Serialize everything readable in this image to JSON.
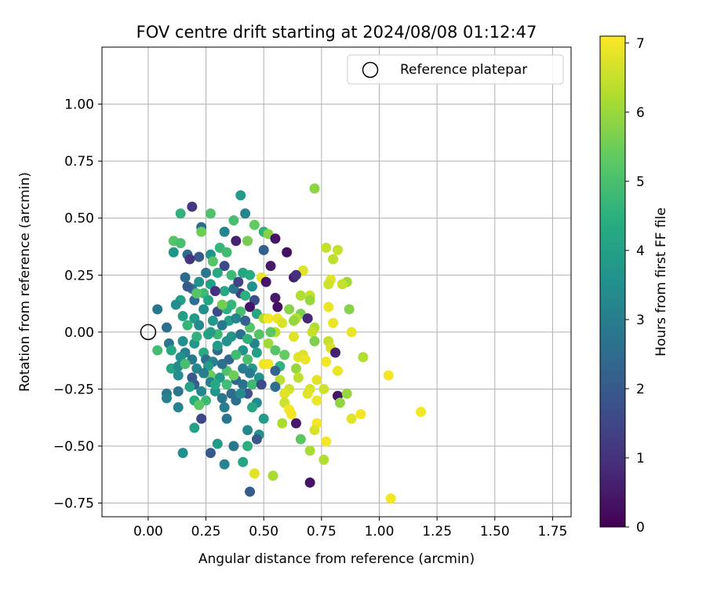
{
  "chart_data": {
    "type": "scatter",
    "title": "FOV centre drift starting at 2024/08/08 01:12:47",
    "xlabel": "Angular distance from reference (arcmin)",
    "ylabel": "Rotation from reference (arcmin)",
    "xlim": [
      -0.2,
      1.83
    ],
    "ylim": [
      -0.81,
      1.25
    ],
    "xticks": [
      0.0,
      0.25,
      0.5,
      0.75,
      1.0,
      1.25,
      1.5,
      1.75
    ],
    "xtick_labels": [
      "0.00",
      "0.25",
      "0.50",
      "0.75",
      "1.00",
      "1.25",
      "1.50",
      "1.75"
    ],
    "yticks": [
      -0.75,
      -0.5,
      -0.25,
      0.0,
      0.25,
      0.5,
      0.75,
      1.0
    ],
    "ytick_labels": [
      "−0.75",
      "−0.50",
      "−0.25",
      "0.00",
      "0.25",
      "0.50",
      "0.75",
      "1.00"
    ],
    "grid": true,
    "legend": {
      "placement": "top-right",
      "entries": [
        "Reference platepar"
      ]
    },
    "colorbar": {
      "label": "Hours from first FF file",
      "min": 0,
      "max": 7.1,
      "ticks": [
        0,
        1,
        2,
        3,
        4,
        5,
        6,
        7
      ],
      "colormap": "viridis"
    },
    "reference_point": {
      "x": 0.0,
      "y": 0.0,
      "name": "Reference platepar"
    },
    "points_columns": [
      "x",
      "y",
      "hours"
    ],
    "points": [
      [
        0.72,
        0.63,
        5.9
      ],
      [
        0.4,
        0.6,
        3.9
      ],
      [
        0.19,
        0.55,
        1.2
      ],
      [
        0.14,
        0.52,
        4.6
      ],
      [
        0.27,
        0.52,
        5.1
      ],
      [
        0.42,
        0.52,
        3.2
      ],
      [
        0.37,
        0.49,
        5.0
      ],
      [
        0.46,
        0.47,
        5.4
      ],
      [
        0.23,
        0.46,
        2.5
      ],
      [
        0.23,
        0.44,
        5.5
      ],
      [
        0.33,
        0.44,
        3.2
      ],
      [
        0.5,
        0.44,
        4.6
      ],
      [
        0.52,
        0.43,
        5.8
      ],
      [
        0.55,
        0.41,
        0.4
      ],
      [
        0.11,
        0.4,
        5.2
      ],
      [
        0.14,
        0.39,
        5.0
      ],
      [
        0.38,
        0.4,
        0.7
      ],
      [
        0.43,
        0.4,
        5.6
      ],
      [
        0.31,
        0.37,
        4.7
      ],
      [
        0.34,
        0.35,
        4.9
      ],
      [
        0.5,
        0.36,
        2.2
      ],
      [
        0.6,
        0.35,
        0.3
      ],
      [
        0.77,
        0.37,
        6.5
      ],
      [
        0.82,
        0.36,
        6.5
      ],
      [
        0.11,
        0.35,
        3.7
      ],
      [
        0.17,
        0.34,
        2.5
      ],
      [
        0.22,
        0.33,
        2.0
      ],
      [
        0.27,
        0.34,
        3.6
      ],
      [
        0.28,
        0.31,
        5.2
      ],
      [
        0.18,
        0.32,
        1.1
      ],
      [
        0.33,
        0.29,
        1.6
      ],
      [
        0.53,
        0.29,
        0.5
      ],
      [
        0.8,
        0.32,
        6.4
      ],
      [
        0.67,
        0.27,
        6.8
      ],
      [
        0.25,
        0.26,
        2.8
      ],
      [
        0.3,
        0.26,
        4.3
      ],
      [
        0.36,
        0.25,
        4.8
      ],
      [
        0.41,
        0.26,
        4.2
      ],
      [
        0.44,
        0.25,
        4.4
      ],
      [
        0.16,
        0.24,
        2.5
      ],
      [
        0.49,
        0.24,
        6.9
      ],
      [
        0.63,
        0.24,
        0.6
      ],
      [
        0.64,
        0.25,
        1.0
      ],
      [
        0.51,
        0.22,
        0.4
      ],
      [
        0.79,
        0.23,
        6.8
      ],
      [
        0.86,
        0.22,
        6.1
      ],
      [
        0.78,
        0.21,
        6.6
      ],
      [
        0.84,
        0.21,
        6.5
      ],
      [
        0.22,
        0.22,
        3.6
      ],
      [
        0.27,
        0.21,
        4.0
      ],
      [
        0.19,
        0.19,
        2.8
      ],
      [
        0.24,
        0.17,
        4.8
      ],
      [
        0.33,
        0.18,
        4.3
      ],
      [
        0.4,
        0.17,
        1.3
      ],
      [
        0.42,
        0.16,
        4.5
      ],
      [
        0.46,
        0.14,
        1.7
      ],
      [
        0.55,
        0.15,
        0.5
      ],
      [
        0.66,
        0.16,
        6.3
      ],
      [
        0.7,
        0.16,
        6.5
      ],
      [
        0.7,
        0.14,
        6.0
      ],
      [
        0.14,
        0.14,
        4.0
      ],
      [
        0.2,
        0.14,
        2.6
      ],
      [
        0.36,
        0.12,
        4.7
      ],
      [
        0.44,
        0.11,
        0.4
      ],
      [
        0.56,
        0.11,
        0.3
      ],
      [
        0.61,
        0.1,
        5.8
      ],
      [
        0.78,
        0.11,
        6.9
      ],
      [
        0.87,
        0.1,
        5.8
      ],
      [
        0.04,
        0.1,
        2.8
      ],
      [
        0.12,
        0.12,
        3.5
      ],
      [
        0.24,
        0.1,
        3.5
      ],
      [
        0.3,
        0.09,
        1.6
      ],
      [
        0.34,
        0.1,
        4.5
      ],
      [
        0.4,
        0.09,
        5.0
      ],
      [
        0.47,
        0.08,
        4.2
      ],
      [
        0.66,
        0.08,
        5.7
      ],
      [
        0.69,
        0.06,
        0.8
      ],
      [
        0.5,
        0.06,
        6.3
      ],
      [
        0.52,
        0.06,
        7.0
      ],
      [
        0.56,
        0.06,
        6.9
      ],
      [
        0.64,
        0.06,
        6.4
      ],
      [
        0.8,
        0.04,
        6.9
      ],
      [
        0.15,
        0.07,
        4.0
      ],
      [
        0.2,
        0.06,
        3.9
      ],
      [
        0.28,
        0.05,
        3.8
      ],
      [
        0.35,
        0.05,
        4.1
      ],
      [
        0.58,
        0.04,
        6.7
      ],
      [
        0.63,
        0.05,
        6.0
      ],
      [
        0.72,
        0.02,
        6.3
      ],
      [
        0.71,
        0.0,
        6.5
      ],
      [
        0.08,
        0.02,
        2.6
      ],
      [
        0.17,
        0.03,
        4.7
      ],
      [
        0.22,
        0.03,
        3.4
      ],
      [
        0.32,
        0.03,
        2.9
      ],
      [
        0.44,
        0.02,
        5.2
      ],
      [
        0.55,
        0.0,
        6.4
      ],
      [
        0.88,
        0.0,
        6.9
      ],
      [
        0.26,
        -0.01,
        4.1
      ],
      [
        0.3,
        -0.01,
        4.8
      ],
      [
        0.4,
        -0.01,
        2.6
      ],
      [
        0.48,
        -0.01,
        5.2
      ],
      [
        0.53,
        0.0,
        5.3
      ],
      [
        0.63,
        -0.02,
        6.8
      ],
      [
        0.72,
        -0.04,
        5.7
      ],
      [
        0.78,
        -0.04,
        6.5
      ],
      [
        0.09,
        -0.05,
        2.8
      ],
      [
        0.15,
        -0.04,
        3.5
      ],
      [
        0.2,
        -0.05,
        3.8
      ],
      [
        0.34,
        -0.04,
        3.6
      ],
      [
        0.46,
        -0.05,
        3.2
      ],
      [
        0.52,
        -0.05,
        6.1
      ],
      [
        0.79,
        -0.07,
        6.7
      ],
      [
        0.04,
        -0.08,
        4.9
      ],
      [
        0.1,
        -0.08,
        4.3
      ],
      [
        0.16,
        -0.09,
        3.1
      ],
      [
        0.24,
        -0.09,
        4.4
      ],
      [
        0.3,
        -0.08,
        2.4
      ],
      [
        0.41,
        -0.08,
        3.6
      ],
      [
        0.47,
        -0.09,
        4.0
      ],
      [
        0.55,
        -0.08,
        5.2
      ],
      [
        0.67,
        -0.1,
        6.7
      ],
      [
        0.81,
        -0.09,
        0.7
      ],
      [
        0.59,
        -0.1,
        5.4
      ],
      [
        0.65,
        -0.11,
        6.8
      ],
      [
        0.14,
        -0.11,
        3.6
      ],
      [
        0.19,
        -0.12,
        2.9
      ],
      [
        0.25,
        -0.12,
        2.6
      ],
      [
        0.28,
        -0.13,
        3.2
      ],
      [
        0.35,
        -0.12,
        2.3
      ],
      [
        0.43,
        -0.12,
        5.0
      ],
      [
        0.5,
        -0.14,
        6.9
      ],
      [
        0.68,
        -0.12,
        6.9
      ],
      [
        0.93,
        -0.11,
        6.3
      ],
      [
        0.52,
        -0.14,
        7.0
      ],
      [
        0.57,
        -0.15,
        4.6
      ],
      [
        0.77,
        -0.13,
        7.0
      ],
      [
        0.1,
        -0.16,
        4.2
      ],
      [
        0.13,
        -0.15,
        3.4
      ],
      [
        0.21,
        -0.16,
        3.3
      ],
      [
        0.26,
        -0.15,
        3.9
      ],
      [
        0.34,
        -0.17,
        5.1
      ],
      [
        0.41,
        -0.16,
        3.0
      ],
      [
        0.45,
        -0.16,
        3.9
      ],
      [
        0.55,
        -0.17,
        2.3
      ],
      [
        0.64,
        -0.16,
        6.0
      ],
      [
        0.82,
        -0.17,
        6.9
      ],
      [
        0.13,
        -0.19,
        3.5
      ],
      [
        0.19,
        -0.2,
        2.0
      ],
      [
        0.27,
        -0.19,
        5.5
      ],
      [
        0.31,
        -0.2,
        3.9
      ],
      [
        0.38,
        -0.21,
        2.4
      ],
      [
        0.48,
        -0.2,
        3.6
      ],
      [
        0.57,
        -0.21,
        6.4
      ],
      [
        0.65,
        -0.2,
        6.4
      ],
      [
        0.73,
        -0.21,
        6.8
      ],
      [
        1.04,
        -0.19,
        7.0
      ],
      [
        0.2,
        -0.23,
        2.2
      ],
      [
        0.27,
        -0.22,
        3.0
      ],
      [
        0.34,
        -0.23,
        4.9
      ],
      [
        0.41,
        -0.23,
        2.7
      ],
      [
        0.45,
        -0.23,
        4.8
      ],
      [
        0.49,
        -0.23,
        1.6
      ],
      [
        0.55,
        -0.24,
        2.6
      ],
      [
        0.61,
        -0.25,
        6.6
      ],
      [
        0.7,
        -0.25,
        6.7
      ],
      [
        0.76,
        -0.25,
        6.6
      ],
      [
        0.08,
        -0.27,
        2.9
      ],
      [
        0.13,
        -0.26,
        2.8
      ],
      [
        0.23,
        -0.26,
        3.3
      ],
      [
        0.29,
        -0.26,
        3.7
      ],
      [
        0.36,
        -0.27,
        2.5
      ],
      [
        0.43,
        -0.27,
        1.8
      ],
      [
        0.59,
        -0.27,
        6.8
      ],
      [
        0.69,
        -0.27,
        6.8
      ],
      [
        0.82,
        -0.28,
        0.4
      ],
      [
        0.86,
        -0.27,
        6.0
      ],
      [
        0.08,
        -0.29,
        3.1
      ],
      [
        0.2,
        -0.3,
        4.4
      ],
      [
        0.25,
        -0.3,
        4.8
      ],
      [
        0.32,
        -0.29,
        2.8
      ],
      [
        0.38,
        -0.3,
        2.6
      ],
      [
        0.47,
        -0.31,
        3.4
      ],
      [
        0.59,
        -0.31,
        6.6
      ],
      [
        0.73,
        -0.3,
        6.9
      ],
      [
        0.83,
        -0.31,
        5.9
      ],
      [
        0.13,
        -0.33,
        3.2
      ],
      [
        0.22,
        -0.32,
        5.3
      ],
      [
        0.33,
        -0.33,
        3.0
      ],
      [
        0.45,
        -0.33,
        4.2
      ],
      [
        0.61,
        -0.34,
        7.0
      ],
      [
        0.62,
        -0.36,
        7.0
      ],
      [
        0.92,
        -0.36,
        7.0
      ],
      [
        0.88,
        -0.38,
        6.8
      ],
      [
        1.18,
        -0.35,
        7.0
      ],
      [
        0.23,
        -0.38,
        1.5
      ],
      [
        0.34,
        -0.38,
        2.8
      ],
      [
        0.5,
        -0.38,
        3.9
      ],
      [
        0.58,
        -0.4,
        6.2
      ],
      [
        0.64,
        -0.4,
        0.5
      ],
      [
        0.73,
        -0.4,
        7.0
      ],
      [
        0.72,
        -0.43,
        6.7
      ],
      [
        0.2,
        -0.42,
        4.1
      ],
      [
        0.43,
        -0.43,
        3.3
      ],
      [
        0.48,
        -0.45,
        3.6
      ],
      [
        0.47,
        -0.47,
        1.9
      ],
      [
        0.66,
        -0.47,
        5.3
      ],
      [
        0.77,
        -0.48,
        7.0
      ],
      [
        0.3,
        -0.49,
        3.9
      ],
      [
        0.37,
        -0.5,
        2.8
      ],
      [
        0.43,
        -0.5,
        4.5
      ],
      [
        0.7,
        -0.52,
        6.2
      ],
      [
        0.15,
        -0.53,
        3.5
      ],
      [
        0.27,
        -0.53,
        2.0
      ],
      [
        0.41,
        -0.57,
        4.2
      ],
      [
        0.33,
        -0.58,
        3.2
      ],
      [
        0.76,
        -0.56,
        6.3
      ],
      [
        0.46,
        -0.62,
        6.8
      ],
      [
        0.54,
        -0.63,
        6.2
      ],
      [
        0.7,
        -0.66,
        0.4
      ],
      [
        0.44,
        -0.7,
        2.1
      ],
      [
        1.05,
        -0.73,
        7.0
      ],
      [
        0.17,
        0.2,
        2.0
      ],
      [
        0.21,
        0.17,
        5.2
      ],
      [
        0.26,
        0.14,
        4.2
      ],
      [
        0.29,
        0.18,
        1.0
      ],
      [
        0.37,
        0.19,
        2.9
      ],
      [
        0.39,
        0.22,
        1.5
      ],
      [
        0.45,
        0.2,
        3.6
      ],
      [
        0.32,
        0.12,
        5.6
      ],
      [
        0.38,
        0.06,
        3.3
      ],
      [
        0.42,
        0.05,
        2.2
      ],
      [
        0.27,
        0.0,
        4.0
      ],
      [
        0.36,
        -0.02,
        3.7
      ],
      [
        0.43,
        -0.03,
        4.6
      ],
      [
        0.21,
        -0.02,
        4.6
      ],
      [
        0.3,
        -0.06,
        3.9
      ],
      [
        0.38,
        -0.1,
        4.9
      ],
      [
        0.44,
        -0.18,
        2.9
      ],
      [
        0.24,
        -0.18,
        3.0
      ],
      [
        0.32,
        -0.14,
        2.7
      ],
      [
        0.4,
        -0.27,
        3.4
      ],
      [
        0.29,
        -0.23,
        4.3
      ],
      [
        0.18,
        -0.24,
        4.1
      ],
      [
        0.16,
        -0.14,
        5.0
      ],
      [
        0.37,
        -0.19,
        5.5
      ]
    ]
  }
}
